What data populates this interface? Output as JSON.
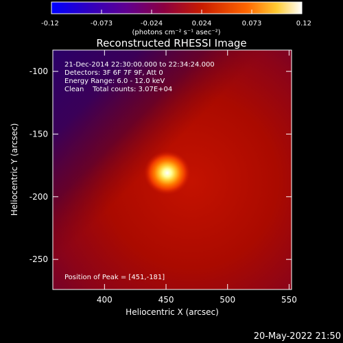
{
  "chart_data": {
    "type": "heatmap",
    "title": "Reconstructed RHESSI Image",
    "xlabel": "Heliocentric X (arcsec)",
    "ylabel": "Heliocentric Y (arcsec)",
    "xlim": [
      358,
      552
    ],
    "ylim": [
      -274,
      -83
    ],
    "x_ticks": [
      400,
      450,
      500,
      550
    ],
    "y_ticks": [
      -100,
      -150,
      -200,
      -250
    ],
    "peak": {
      "x": 451,
      "y": -181
    },
    "colorbar": {
      "min": -0.12,
      "max": 0.12,
      "ticks": [
        "-0.12",
        "-0.073",
        "-0.024",
        "0.024",
        "0.073",
        "0.12"
      ],
      "unit_label": "(photons cm⁻² s⁻¹ asec⁻²)",
      "colors": [
        "#0000ff",
        "#3000c0",
        "#600090",
        "#8c0040",
        "#c81c00",
        "#ff6600",
        "#ffcc33",
        "#ffffff"
      ]
    },
    "annotations": [
      "21-Dec-2014 22:30:00.000 to 22:34:24.000",
      "Detectors: 3F 6F 7F 9F, Att 0",
      "Energy Range: 6.0 - 12.0 keV",
      "Clean    Total counts: 3.07E+04"
    ],
    "peak_label": "Position of Peak = [451,-181]",
    "footer_date": "20-May-2022 21:50"
  }
}
